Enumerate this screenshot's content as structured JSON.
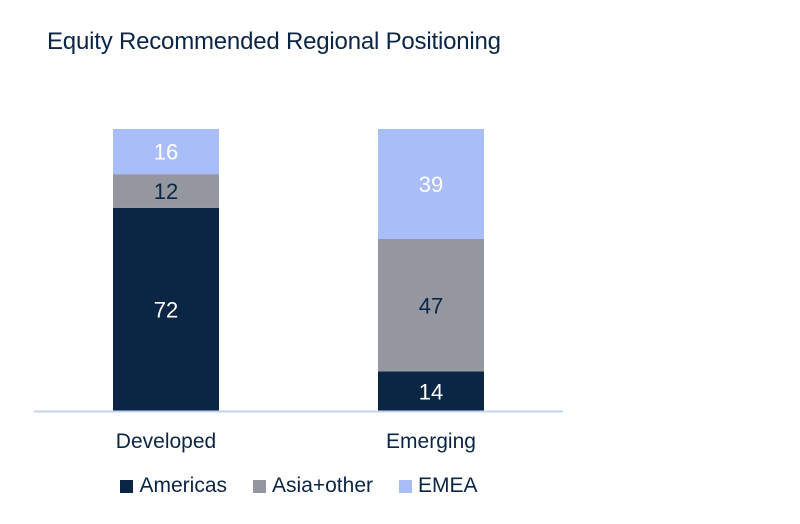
{
  "title": "Equity Recommended Regional Positioning",
  "colors": {
    "Americas": "#0b2545",
    "Asia+other": "#9496a0",
    "EMEA": "#a9bef9",
    "axis": "#c5d6ec",
    "label_dark": "#0b2545",
    "label_light": "#ffffff"
  },
  "chart_data": {
    "type": "bar",
    "stacked": true,
    "categories": [
      "Developed",
      "Emerging"
    ],
    "series": [
      {
        "name": "Americas",
        "values": [
          72,
          14
        ]
      },
      {
        "name": "Asia+other",
        "values": [
          12,
          47
        ]
      },
      {
        "name": "EMEA",
        "values": [
          16,
          39
        ]
      }
    ],
    "ylim": [
      0,
      100
    ],
    "legend_position": "bottom",
    "grid": false
  }
}
